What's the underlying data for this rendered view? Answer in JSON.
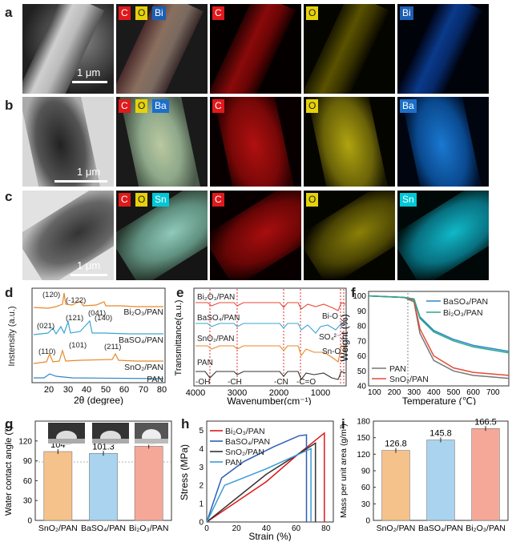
{
  "panels": {
    "a": "a",
    "b": "b",
    "c": "c",
    "d": "d",
    "e": "e",
    "f": "f",
    "g": "g",
    "h": "h",
    "i": "i"
  },
  "scale_bar": "1 μm",
  "maps": {
    "row_a": {
      "merged_tags": [
        "C",
        "O",
        "Bi"
      ],
      "C": "C",
      "O": "O",
      "M": "Bi",
      "metal_color": "#1c5fb5"
    },
    "row_b": {
      "merged_tags": [
        "C",
        "O",
        "Ba"
      ],
      "C": "C",
      "O": "O",
      "M": "Ba",
      "metal_color": "#1c6fc9"
    },
    "row_c": {
      "merged_tags": [
        "C",
        "O",
        "Sn"
      ],
      "C": "C",
      "O": "O",
      "M": "Sn",
      "metal_color": "#00c8d6"
    }
  },
  "colors": {
    "C": "#e0191b",
    "O": "#e6d20a",
    "PAN": "#2e86c9",
    "BaSO4": "#3aa6d2",
    "SnO2": "#e8872a",
    "Bi2O3": "#e84a37"
  },
  "xrd": {
    "xlabel": "2θ (degree)",
    "ylabel": "Instensity (a.u.)",
    "xticks": [
      "20",
      "30",
      "40",
      "50",
      "60",
      "70",
      "80"
    ],
    "series": [
      "Bi₂O₃/PAN",
      "BaSO₄/PAN",
      "SnO₂/PAN",
      "PAN"
    ],
    "peaks_bi": [
      "(120)",
      "(-122)",
      "(041)"
    ],
    "peaks_ba": [
      "(021)",
      "(121)",
      "(140)"
    ],
    "peaks_sn": [
      "(110)",
      "(101)",
      "(211)"
    ]
  },
  "ftir": {
    "xlabel": "Wavenumber(cm⁻¹)",
    "ylabel": "Transmittance(a.u.)",
    "xticks": [
      "4000",
      "3000",
      "2000",
      "1000"
    ],
    "series": [
      "Bi₂O₃/PAN",
      "BaSO₄/PAN",
      "SnO₂/PAN",
      "PAN"
    ],
    "bands": [
      "-OH",
      "-CH",
      "-CN",
      "-C=O"
    ],
    "annot": [
      "Bi-O",
      "SO₄²⁻",
      "Sn-O"
    ]
  },
  "tga": {
    "xlabel": "Temperature (℃)",
    "ylabel": "Weight (%)",
    "xticks": [
      "100",
      "200",
      "300",
      "400",
      "500",
      "600",
      "700"
    ],
    "yticks": [
      "100",
      "90",
      "80",
      "70",
      "60",
      "50",
      "40"
    ],
    "legend_top": [
      "BaSO₄/PAN",
      "Bi₂O₃/PAN"
    ],
    "legend_bottom": [
      "PAN",
      "SnO₂/PAN"
    ]
  },
  "contact": {
    "ylabel": "Water contact angle (°)",
    "categories": [
      "SnO₂/PAN",
      "BaSO₄/PAN",
      "Bi₂O₃/PAN"
    ],
    "values": [
      "104",
      "101.3",
      "112"
    ],
    "yticks": [
      "0",
      "30",
      "60",
      "90",
      "120"
    ]
  },
  "stress": {
    "xlabel": "Strain (%)",
    "ylabel": "Stress (MPa)",
    "xticks": [
      "0",
      "20",
      "40",
      "60",
      "80"
    ],
    "yticks": [
      "0",
      "1",
      "2",
      "3",
      "4",
      "5"
    ],
    "legend": [
      "Bi₂O₃/PAN",
      "BaSO₄/PAN",
      "SnO₂/PAN",
      "PAN"
    ]
  },
  "mass": {
    "ylabel": "Mass per unit area (g/m²)",
    "categories": [
      "SnO₂/PAN",
      "BaSO₄/PAN",
      "Bi₂O₃/PAN"
    ],
    "values": [
      "126.8",
      "145.8",
      "166.5"
    ],
    "yticks": [
      "0",
      "30",
      "60",
      "90",
      "120",
      "150",
      "180"
    ]
  },
  "chart_data": [
    {
      "type": "bar",
      "title": "",
      "categories": [
        "SnO₂/PAN",
        "BaSO₄/PAN",
        "Bi₂O₃/PAN"
      ],
      "values": [
        104,
        101.3,
        112
      ],
      "ylabel": "Water contact angle (°)",
      "ylim": [
        0,
        150
      ]
    },
    {
      "type": "bar",
      "title": "",
      "categories": [
        "SnO₂/PAN",
        "BaSO₄/PAN",
        "Bi₂O₃/PAN"
      ],
      "values": [
        126.8,
        145.8,
        166.5
      ],
      "ylabel": "Mass per unit area (g/m²)",
      "ylim": [
        0,
        180
      ]
    },
    {
      "type": "line",
      "title": "",
      "xlabel": "Strain (%)",
      "ylabel": "Stress (MPa)",
      "xlim": [
        0,
        85
      ],
      "ylim": [
        0,
        5.5
      ],
      "series": [
        {
          "name": "Bi₂O₃/PAN",
          "x": [
            0,
            40,
            60,
            79,
            79
          ],
          "y": [
            0,
            2.2,
            3.6,
            4.85,
            0
          ]
        },
        {
          "name": "BaSO₄/PAN",
          "x": [
            0,
            10,
            25,
            45,
            62,
            67,
            67
          ],
          "y": [
            0,
            2.4,
            3.3,
            4.1,
            4.7,
            4.75,
            0
          ]
        },
        {
          "name": "SnO₂/PAN",
          "x": [
            0,
            40,
            73,
            73
          ],
          "y": [
            0,
            2.6,
            4.3,
            0
          ]
        },
        {
          "name": "PAN",
          "x": [
            0,
            12,
            40,
            70,
            70
          ],
          "y": [
            0,
            2.0,
            2.9,
            4.0,
            0
          ]
        }
      ]
    },
    {
      "type": "line",
      "title": "",
      "xlabel": "Temperature (℃)",
      "ylabel": "Weight (%)",
      "xlim": [
        70,
        780
      ],
      "ylim": [
        40,
        103
      ],
      "series": [
        {
          "name": "PAN",
          "x": [
            70,
            250,
            300,
            330,
            400,
            500,
            600,
            780
          ],
          "y": [
            100,
            99,
            96,
            75,
            57,
            50,
            47,
            45
          ]
        },
        {
          "name": "SnO₂/PAN",
          "x": [
            70,
            250,
            300,
            330,
            400,
            500,
            600,
            780
          ],
          "y": [
            100,
            99,
            97,
            78,
            60,
            52,
            49,
            47
          ]
        },
        {
          "name": "BaSO₄/PAN",
          "x": [
            70,
            250,
            300,
            330,
            400,
            500,
            600,
            780
          ],
          "y": [
            100,
            99,
            98,
            86,
            77,
            71,
            67,
            63
          ]
        },
        {
          "name": "Bi₂O₃/PAN",
          "x": [
            70,
            250,
            300,
            330,
            400,
            500,
            600,
            780
          ],
          "y": [
            100,
            99,
            98,
            85,
            76,
            70,
            66,
            62
          ]
        }
      ]
    }
  ]
}
